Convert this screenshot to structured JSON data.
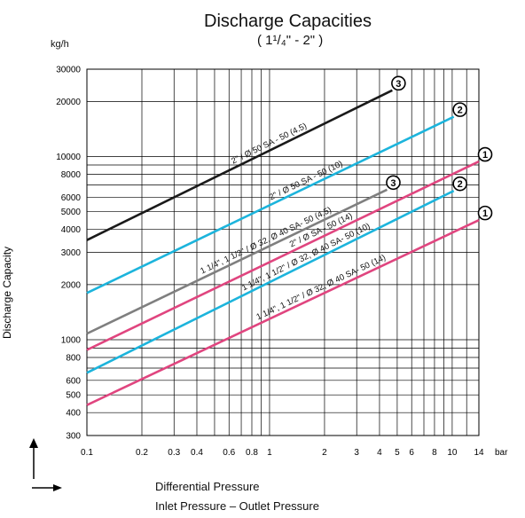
{
  "chart_data": {
    "type": "line",
    "title": "Discharge Capacities",
    "subtitle": "( 1¹/₄\" -  2\" )",
    "ylabel": "Discharge Capacity",
    "y_unit": "kg/h",
    "x_unit": "bar",
    "xlabel": "Differential Pressure",
    "xlabel_sub": "Inlet Pressure  – Outlet Pressure",
    "x_scale": "log",
    "y_scale": "log",
    "xlim": [
      0.1,
      14
    ],
    "ylim": [
      300,
      30000
    ],
    "grid": true,
    "x_ticks": [
      0.1,
      0.2,
      0.3,
      0.4,
      0.6,
      0.8,
      1,
      2,
      3,
      4,
      5,
      6,
      8,
      10,
      14
    ],
    "x_tick_labels": [
      "0.1",
      "0.2",
      "0.3",
      "0.4",
      "0.6",
      "0.8",
      "1",
      "2",
      "3",
      "4",
      "5",
      "6",
      "8",
      "10",
      "14"
    ],
    "y_ticks": [
      300,
      400,
      500,
      600,
      800,
      1000,
      2000,
      3000,
      4000,
      5000,
      6000,
      8000,
      10000,
      20000,
      30000
    ],
    "y_tick_labels": [
      "300",
      "400",
      "500",
      "600",
      "800",
      "1000",
      "2000",
      "3000",
      "4000",
      "5000",
      "6000",
      "8000",
      "10000",
      "20000",
      "30000"
    ],
    "series": [
      {
        "name": "2\" / Ø 50 SA - 50 (4.5)",
        "marker": "3",
        "color": "#1a1a1a",
        "x": [
          0.1,
          4.7
        ],
        "y": [
          3500,
          23000
        ]
      },
      {
        "name": "2\" / Ø 50 SA - 50 (10)",
        "marker": "2",
        "color": "#1cb4dc",
        "x": [
          0.1,
          10.2
        ],
        "y": [
          1800,
          16500
        ]
      },
      {
        "name": "1 1/4\", 1 1/2\" / Ø 32, Ø 40 SA- 50 (4.5)",
        "marker": "3",
        "color": "#7f7f7f",
        "x": [
          0.1,
          4.4
        ],
        "y": [
          1080,
          6600
        ]
      },
      {
        "name": "2\" / Ø SA - 50 (14)",
        "marker": "1",
        "color": "#e0457f",
        "x": [
          0.1,
          14
        ],
        "y": [
          880,
          9400
        ]
      },
      {
        "name": "1 1/4\", 1 1/2\" / Ø 32, Ø 40 SA- 50 (10)",
        "marker": "2",
        "color": "#1cb4dc",
        "x": [
          0.1,
          10.2
        ],
        "y": [
          660,
          6500
        ]
      },
      {
        "name": "1 1/4\", 1 1/2\" / Ø 32, Ø 40 SA- 50 (14)",
        "marker": "1",
        "color": "#e0457f",
        "x": [
          0.1,
          14
        ],
        "y": [
          440,
          4500
        ]
      }
    ]
  }
}
